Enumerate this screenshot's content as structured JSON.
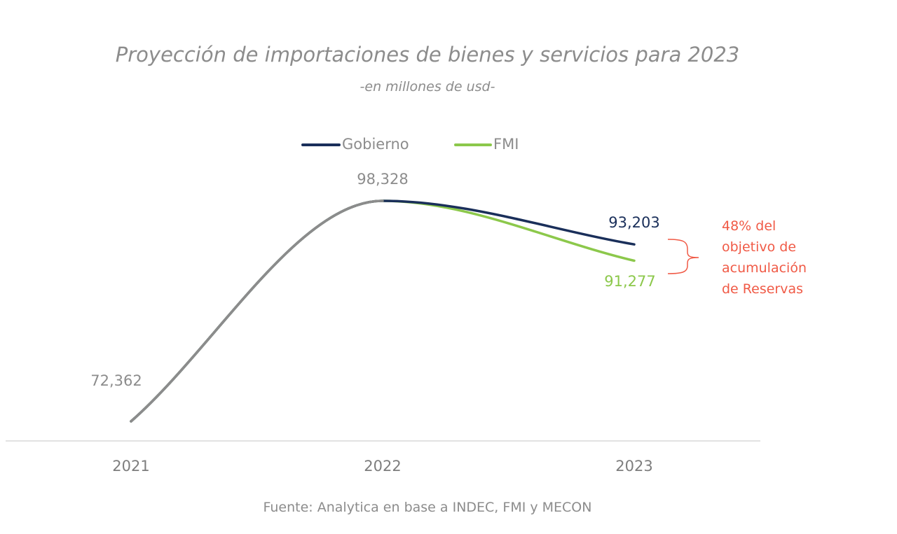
{
  "colors": {
    "gobierno": "#1a2f5a",
    "fmi": "#8cc84b",
    "shared": "#8c8c8c",
    "annotation": "#f05a46",
    "axis": "#d9d9d9"
  },
  "chart_data": {
    "type": "line",
    "title": "Proyección de importaciones de bienes y servicios para 2023",
    "subtitle": "-en millones de usd-",
    "categories": [
      "2021",
      "2022",
      "2023"
    ],
    "series": [
      {
        "name": "Gobierno",
        "values": [
          72362,
          98328,
          93203
        ]
      },
      {
        "name": "FMI",
        "values": [
          72362,
          98328,
          91277
        ]
      }
    ],
    "data_labels": [
      "72,362",
      "98,328",
      "93,203",
      "91,277"
    ],
    "annotation": [
      "48% del",
      "objetivo de",
      "acumulación",
      "de Reservas"
    ],
    "legend_position": "top-center",
    "grid": false,
    "source": "Fuente: Analytica en base a INDEC, FMI y MECON"
  }
}
